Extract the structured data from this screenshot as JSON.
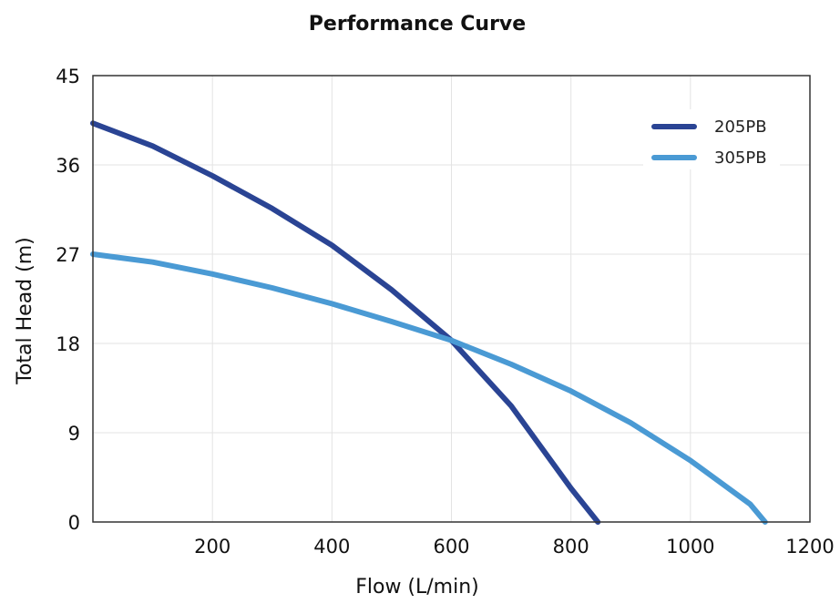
{
  "chart_data": {
    "type": "line",
    "title": "Performance Curve",
    "xlabel": "Flow (L/min)",
    "ylabel": "Total Head (m)",
    "xlim": [
      0,
      1200
    ],
    "ylim": [
      0,
      45
    ],
    "x_ticks": [
      "200",
      "400",
      "600",
      "800",
      "1000",
      "1200"
    ],
    "y_ticks": [
      "0",
      "9",
      "18",
      "27",
      "36",
      "45"
    ],
    "grid": true,
    "legend_position": "top-right",
    "series": [
      {
        "name": "205PB",
        "color": "#2a4494",
        "points": [
          [
            0,
            40.2
          ],
          [
            100,
            37.9
          ],
          [
            200,
            34.9
          ],
          [
            300,
            31.6
          ],
          [
            400,
            27.9
          ],
          [
            500,
            23.4
          ],
          [
            600,
            18.3
          ],
          [
            700,
            11.7
          ],
          [
            800,
            3.4
          ],
          [
            845,
            0
          ]
        ]
      },
      {
        "name": "305PB",
        "color": "#4a9ad4",
        "points": [
          [
            0,
            27
          ],
          [
            100,
            26.2
          ],
          [
            200,
            25
          ],
          [
            300,
            23.6
          ],
          [
            400,
            22
          ],
          [
            500,
            20.2
          ],
          [
            600,
            18.3
          ],
          [
            700,
            15.9
          ],
          [
            800,
            13.2
          ],
          [
            900,
            10
          ],
          [
            1000,
            6.2
          ],
          [
            1100,
            1.8
          ],
          [
            1125,
            0
          ]
        ]
      }
    ]
  }
}
